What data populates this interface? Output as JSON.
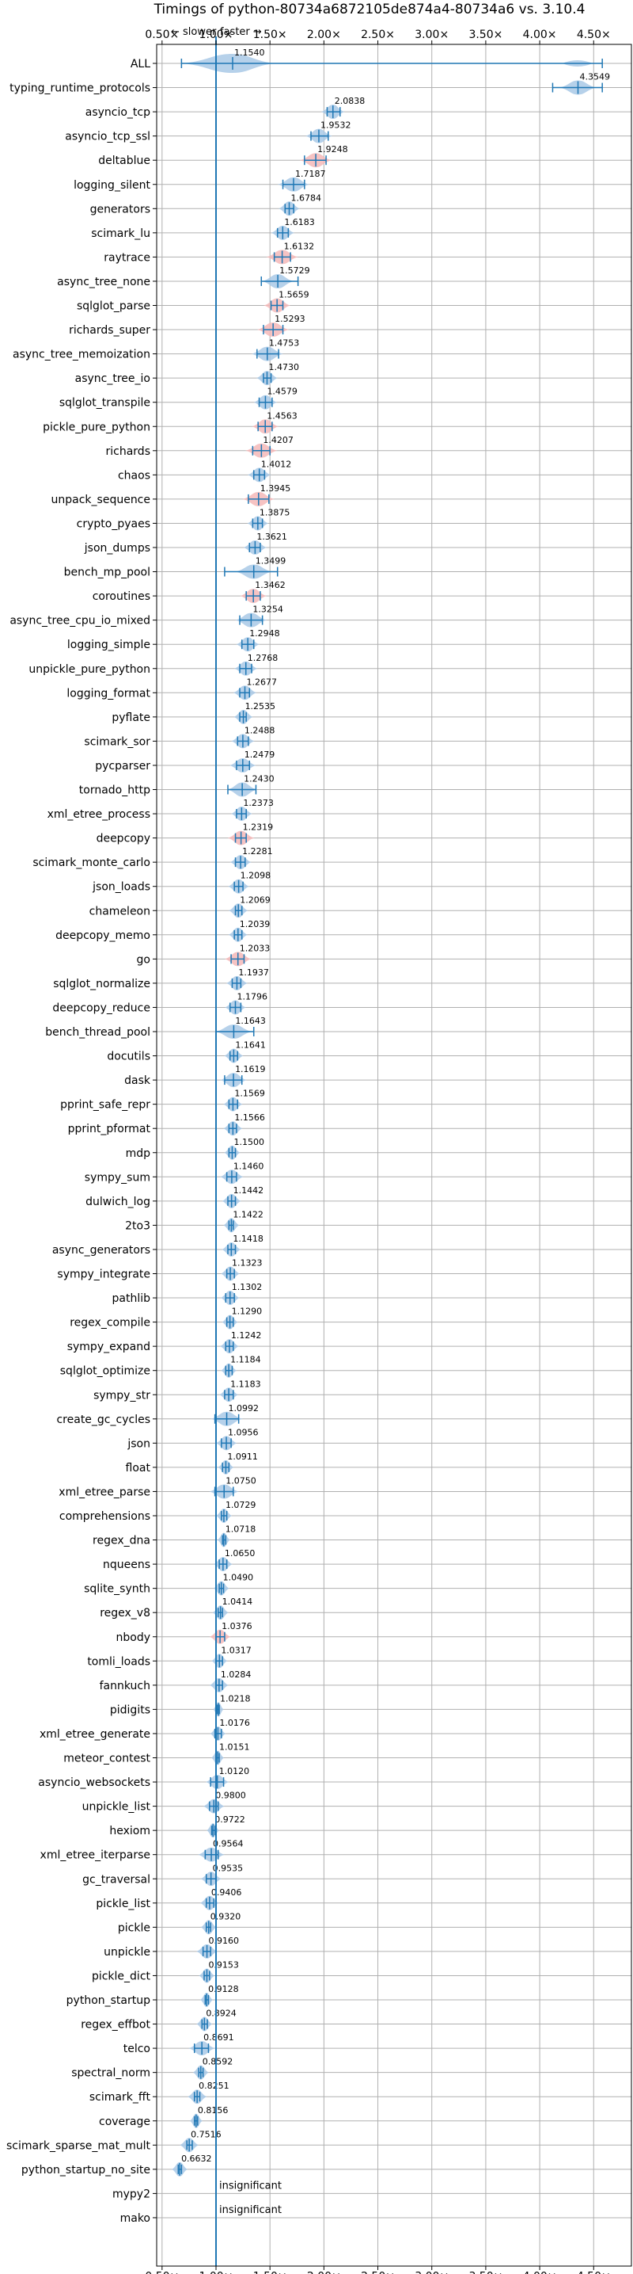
{
  "chart_data": {
    "type": "violin",
    "title": "Timings of python-80734a6872105de874a4-80734a6 vs. 3.10.4",
    "annotation_slower": "← slower",
    "annotation_faster": "faster →",
    "xlim": [
      0.45,
      4.85
    ],
    "xticks": [
      0.5,
      1.0,
      1.5,
      2.0,
      2.5,
      3.0,
      3.5,
      4.0,
      4.5
    ],
    "xtick_labels": [
      "0.50×",
      "1.00×",
      "1.50×",
      "2.00×",
      "2.50×",
      "3.00×",
      "3.50×",
      "4.00×",
      "4.50×"
    ],
    "reference_line": 1.0,
    "grid": true,
    "colors": {
      "bar": "#1f77b4",
      "violin": "#a9c9e6",
      "slow_violin": "#f4b8b8",
      "grid": "#b0b0b0"
    },
    "benchmarks": [
      {
        "name": "ALL",
        "value": 1.154,
        "lo": 0.68,
        "hi": 4.58,
        "w": 0.45
      },
      {
        "name": "typing_runtime_protocols",
        "value": 4.3549,
        "lo": 4.12,
        "hi": 4.58,
        "w": 0.35
      },
      {
        "name": "asyncio_tcp",
        "value": 2.0838,
        "lo": 2.03,
        "hi": 2.15,
        "w": 0.22
      },
      {
        "name": "asyncio_tcp_ssl",
        "value": 1.9532,
        "lo": 1.88,
        "hi": 2.04,
        "w": 0.25
      },
      {
        "name": "deltablue",
        "value": 1.9248,
        "lo": 1.82,
        "hi": 2.02,
        "w": 0.3,
        "slow": true
      },
      {
        "name": "logging_silent",
        "value": 1.7187,
        "lo": 1.62,
        "hi": 1.82,
        "w": 0.3
      },
      {
        "name": "generators",
        "value": 1.6784,
        "lo": 1.64,
        "hi": 1.72,
        "w": 0.2
      },
      {
        "name": "scimark_lu",
        "value": 1.6183,
        "lo": 1.57,
        "hi": 1.67,
        "w": 0.22
      },
      {
        "name": "raytrace",
        "value": 1.6132,
        "lo": 1.54,
        "hi": 1.69,
        "w": 0.3,
        "slow": true
      },
      {
        "name": "async_tree_none",
        "value": 1.5729,
        "lo": 1.42,
        "hi": 1.76,
        "w": 0.3
      },
      {
        "name": "sqlglot_parse",
        "value": 1.5659,
        "lo": 1.51,
        "hi": 1.62,
        "w": 0.25,
        "slow": true
      },
      {
        "name": "richards_super",
        "value": 1.5293,
        "lo": 1.44,
        "hi": 1.62,
        "w": 0.3,
        "slow": true
      },
      {
        "name": "async_tree_memoization",
        "value": 1.4753,
        "lo": 1.38,
        "hi": 1.58,
        "w": 0.3
      },
      {
        "name": "async_tree_io",
        "value": 1.473,
        "lo": 1.44,
        "hi": 1.51,
        "w": 0.2
      },
      {
        "name": "sqlglot_transpile",
        "value": 1.4579,
        "lo": 1.4,
        "hi": 1.52,
        "w": 0.22
      },
      {
        "name": "pickle_pure_python",
        "value": 1.4563,
        "lo": 1.39,
        "hi": 1.52,
        "w": 0.25,
        "slow": true
      },
      {
        "name": "richards",
        "value": 1.4207,
        "lo": 1.34,
        "hi": 1.5,
        "w": 0.3,
        "slow": true
      },
      {
        "name": "chaos",
        "value": 1.4012,
        "lo": 1.35,
        "hi": 1.45,
        "w": 0.22
      },
      {
        "name": "unpack_sequence",
        "value": 1.3945,
        "lo": 1.3,
        "hi": 1.49,
        "w": 0.3,
        "slow": true
      },
      {
        "name": "crypto_pyaes",
        "value": 1.3875,
        "lo": 1.34,
        "hi": 1.43,
        "w": 0.2
      },
      {
        "name": "json_dumps",
        "value": 1.3621,
        "lo": 1.31,
        "hi": 1.41,
        "w": 0.22
      },
      {
        "name": "bench_mp_pool",
        "value": 1.3499,
        "lo": 1.08,
        "hi": 1.57,
        "w": 0.35
      },
      {
        "name": "coroutines",
        "value": 1.3462,
        "lo": 1.28,
        "hi": 1.41,
        "w": 0.25,
        "slow": true
      },
      {
        "name": "async_tree_cpu_io_mixed",
        "value": 1.3254,
        "lo": 1.22,
        "hi": 1.43,
        "w": 0.3
      },
      {
        "name": "logging_simple",
        "value": 1.2948,
        "lo": 1.24,
        "hi": 1.35,
        "w": 0.22
      },
      {
        "name": "unpickle_pure_python",
        "value": 1.2768,
        "lo": 1.22,
        "hi": 1.33,
        "w": 0.22
      },
      {
        "name": "logging_format",
        "value": 1.2677,
        "lo": 1.22,
        "hi": 1.31,
        "w": 0.22
      },
      {
        "name": "pyflate",
        "value": 1.2535,
        "lo": 1.22,
        "hi": 1.28,
        "w": 0.18
      },
      {
        "name": "scimark_sor",
        "value": 1.2488,
        "lo": 1.2,
        "hi": 1.3,
        "w": 0.22
      },
      {
        "name": "pycparser",
        "value": 1.2479,
        "lo": 1.19,
        "hi": 1.31,
        "w": 0.25
      },
      {
        "name": "tornado_http",
        "value": 1.243,
        "lo": 1.11,
        "hi": 1.37,
        "w": 0.28
      },
      {
        "name": "xml_etree_process",
        "value": 1.2373,
        "lo": 1.19,
        "hi": 1.28,
        "w": 0.2
      },
      {
        "name": "deepcopy",
        "value": 1.2319,
        "lo": 1.18,
        "hi": 1.28,
        "w": 0.25,
        "slow": true
      },
      {
        "name": "scimark_monte_carlo",
        "value": 1.2281,
        "lo": 1.18,
        "hi": 1.27,
        "w": 0.2
      },
      {
        "name": "json_loads",
        "value": 1.2098,
        "lo": 1.17,
        "hi": 1.25,
        "w": 0.2
      },
      {
        "name": "chameleon",
        "value": 1.2069,
        "lo": 1.18,
        "hi": 1.24,
        "w": 0.18
      },
      {
        "name": "deepcopy_memo",
        "value": 1.2039,
        "lo": 1.17,
        "hi": 1.24,
        "w": 0.18
      },
      {
        "name": "go",
        "value": 1.2033,
        "lo": 1.14,
        "hi": 1.26,
        "w": 0.25,
        "slow": true
      },
      {
        "name": "sqlglot_normalize",
        "value": 1.1937,
        "lo": 1.15,
        "hi": 1.23,
        "w": 0.2
      },
      {
        "name": "deepcopy_reduce",
        "value": 1.1796,
        "lo": 1.13,
        "hi": 1.23,
        "w": 0.2
      },
      {
        "name": "bench_thread_pool",
        "value": 1.1643,
        "lo": 1.0,
        "hi": 1.35,
        "w": 0.35
      },
      {
        "name": "docutils",
        "value": 1.1641,
        "lo": 1.13,
        "hi": 1.2,
        "w": 0.18
      },
      {
        "name": "dask",
        "value": 1.1619,
        "lo": 1.08,
        "hi": 1.24,
        "w": 0.25
      },
      {
        "name": "pprint_safe_repr",
        "value": 1.1569,
        "lo": 1.12,
        "hi": 1.2,
        "w": 0.18
      },
      {
        "name": "pprint_pformat",
        "value": 1.1566,
        "lo": 1.12,
        "hi": 1.19,
        "w": 0.18
      },
      {
        "name": "mdp",
        "value": 1.15,
        "lo": 1.12,
        "hi": 1.18,
        "w": 0.15
      },
      {
        "name": "sympy_sum",
        "value": 1.146,
        "lo": 1.1,
        "hi": 1.19,
        "w": 0.22
      },
      {
        "name": "dulwich_log",
        "value": 1.1442,
        "lo": 1.11,
        "hi": 1.18,
        "w": 0.18
      },
      {
        "name": "2to3",
        "value": 1.1422,
        "lo": 1.12,
        "hi": 1.16,
        "w": 0.15
      },
      {
        "name": "async_generators",
        "value": 1.1418,
        "lo": 1.11,
        "hi": 1.18,
        "w": 0.18
      },
      {
        "name": "sympy_integrate",
        "value": 1.1323,
        "lo": 1.1,
        "hi": 1.17,
        "w": 0.18
      },
      {
        "name": "pathlib",
        "value": 1.1302,
        "lo": 1.09,
        "hi": 1.17,
        "w": 0.18
      },
      {
        "name": "regex_compile",
        "value": 1.129,
        "lo": 1.1,
        "hi": 1.16,
        "w": 0.15
      },
      {
        "name": "sympy_expand",
        "value": 1.1242,
        "lo": 1.09,
        "hi": 1.16,
        "w": 0.18
      },
      {
        "name": "sqlglot_optimize",
        "value": 1.1184,
        "lo": 1.09,
        "hi": 1.15,
        "w": 0.15
      },
      {
        "name": "sympy_str",
        "value": 1.1183,
        "lo": 1.08,
        "hi": 1.16,
        "w": 0.18
      },
      {
        "name": "create_gc_cycles",
        "value": 1.0992,
        "lo": 0.99,
        "hi": 1.21,
        "w": 0.3
      },
      {
        "name": "json",
        "value": 1.0956,
        "lo": 1.05,
        "hi": 1.14,
        "w": 0.2
      },
      {
        "name": "float",
        "value": 1.0911,
        "lo": 1.06,
        "hi": 1.12,
        "w": 0.15
      },
      {
        "name": "xml_etree_parse",
        "value": 1.075,
        "lo": 0.99,
        "hi": 1.16,
        "w": 0.28
      },
      {
        "name": "comprehensions",
        "value": 1.0729,
        "lo": 1.05,
        "hi": 1.1,
        "w": 0.15
      },
      {
        "name": "regex_dna",
        "value": 1.0718,
        "lo": 1.06,
        "hi": 1.09,
        "w": 0.12
      },
      {
        "name": "nqueens",
        "value": 1.065,
        "lo": 1.03,
        "hi": 1.1,
        "w": 0.18
      },
      {
        "name": "sqlite_synth",
        "value": 1.049,
        "lo": 1.03,
        "hi": 1.07,
        "w": 0.15
      },
      {
        "name": "regex_v8",
        "value": 1.0414,
        "lo": 1.02,
        "hi": 1.06,
        "w": 0.15
      },
      {
        "name": "nbody",
        "value": 1.0376,
        "lo": 1.0,
        "hi": 1.08,
        "w": 0.2,
        "slow": true
      },
      {
        "name": "tomli_loads",
        "value": 1.0317,
        "lo": 1.0,
        "hi": 1.06,
        "w": 0.15
      },
      {
        "name": "fannkuch",
        "value": 1.0284,
        "lo": 1.0,
        "hi": 1.06,
        "w": 0.18
      },
      {
        "name": "pidigits",
        "value": 1.0218,
        "lo": 1.01,
        "hi": 1.03,
        "w": 0.1
      },
      {
        "name": "xml_etree_generate",
        "value": 1.0176,
        "lo": 0.99,
        "hi": 1.05,
        "w": 0.15
      },
      {
        "name": "meteor_contest",
        "value": 1.0151,
        "lo": 1.0,
        "hi": 1.03,
        "w": 0.12
      },
      {
        "name": "asyncio_websockets",
        "value": 1.012,
        "lo": 0.95,
        "hi": 1.07,
        "w": 0.22
      },
      {
        "name": "unpickle_list",
        "value": 0.98,
        "lo": 0.94,
        "hi": 1.02,
        "w": 0.2
      },
      {
        "name": "hexiom",
        "value": 0.9722,
        "lo": 0.96,
        "hi": 0.99,
        "w": 0.12
      },
      {
        "name": "xml_etree_iterparse",
        "value": 0.9564,
        "lo": 0.9,
        "hi": 1.02,
        "w": 0.25
      },
      {
        "name": "gc_traversal",
        "value": 0.9535,
        "lo": 0.91,
        "hi": 1.0,
        "w": 0.2
      },
      {
        "name": "pickle_list",
        "value": 0.9406,
        "lo": 0.91,
        "hi": 0.98,
        "w": 0.18
      },
      {
        "name": "pickle",
        "value": 0.932,
        "lo": 0.91,
        "hi": 0.95,
        "w": 0.15
      },
      {
        "name": "unpickle",
        "value": 0.916,
        "lo": 0.88,
        "hi": 0.95,
        "w": 0.2
      },
      {
        "name": "pickle_dict",
        "value": 0.9153,
        "lo": 0.89,
        "hi": 0.94,
        "w": 0.15
      },
      {
        "name": "python_startup",
        "value": 0.9128,
        "lo": 0.9,
        "hi": 0.93,
        "w": 0.12
      },
      {
        "name": "regex_effbot",
        "value": 0.8924,
        "lo": 0.87,
        "hi": 0.92,
        "w": 0.15
      },
      {
        "name": "telco",
        "value": 0.8691,
        "lo": 0.8,
        "hi": 0.93,
        "w": 0.25
      },
      {
        "name": "spectral_norm",
        "value": 0.8592,
        "lo": 0.84,
        "hi": 0.88,
        "w": 0.15
      },
      {
        "name": "scimark_fft",
        "value": 0.8251,
        "lo": 0.8,
        "hi": 0.85,
        "w": 0.18
      },
      {
        "name": "coverage",
        "value": 0.8156,
        "lo": 0.8,
        "hi": 0.83,
        "w": 0.12
      },
      {
        "name": "scimark_sparse_mat_mult",
        "value": 0.7516,
        "lo": 0.73,
        "hi": 0.78,
        "w": 0.18
      },
      {
        "name": "python_startup_no_site",
        "value": 0.6632,
        "lo": 0.65,
        "hi": 0.68,
        "w": 0.15
      },
      {
        "name": "mypy2",
        "text": "insignificant"
      },
      {
        "name": "mako",
        "text": "insignificant"
      }
    ]
  }
}
